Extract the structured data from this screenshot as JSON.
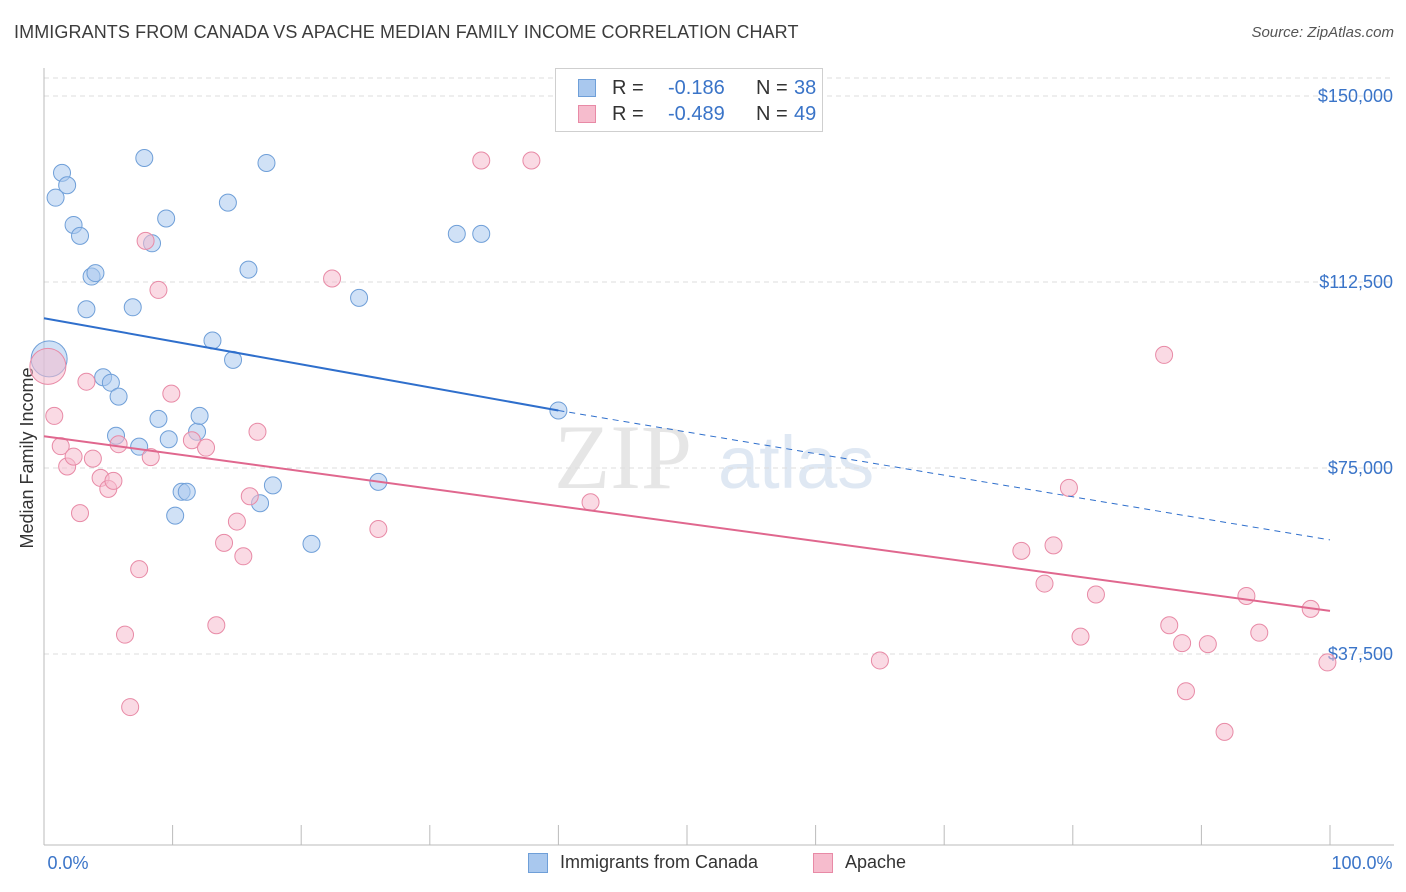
{
  "title": "IMMIGRANTS FROM CANADA VS APACHE MEDIAN FAMILY INCOME CORRELATION CHART",
  "source": "Source: ZipAtlas.com",
  "watermark": {
    "zip": "ZIP",
    "atlas": "atlas"
  },
  "legend_stats": [
    {
      "r_label": "R =",
      "r_value": "-0.186",
      "n_label": "N =",
      "n_value": "38"
    },
    {
      "r_label": "R =",
      "r_value": "-0.489",
      "n_label": "N =",
      "n_value": "49"
    }
  ],
  "bottom_legend": [
    "Immigrants from Canada",
    "Apache"
  ],
  "colors": {
    "canada_fill": "#a9c8ee",
    "canada_stroke": "#6f9fd8",
    "canada_line": "#2f6fcc",
    "apache_fill": "#f6bccd",
    "apache_stroke": "#e88aa6",
    "apache_line": "#e0678e",
    "tick_label": "#3a74c8",
    "grid": "#dddddd"
  },
  "chart_data": {
    "type": "scatter",
    "title": "IMMIGRANTS FROM CANADA VS APACHE MEDIAN FAMILY INCOME CORRELATION CHART",
    "xlabel": "",
    "ylabel": "Median Family Income",
    "xlim": [
      0,
      100
    ],
    "ylim": [
      10000,
      156000
    ],
    "x_tick_labels": [
      "0.0%",
      "100.0%"
    ],
    "y_ticks": [
      37500,
      75000,
      112500,
      150000
    ],
    "y_tick_labels": [
      "$37,500",
      "$75,000",
      "$112,500",
      "$150,000"
    ],
    "grid": true,
    "legend_position": "top-center",
    "series": [
      {
        "name": "Immigrants from Canada",
        "r": -0.186,
        "n": 38,
        "trend": {
          "x0": 0,
          "y0": 105200,
          "x1": 40.0,
          "y1": 86600,
          "x_dash_end": 100,
          "y_dash_end": 60500
        },
        "points": [
          {
            "x": 0.4,
            "y": 97000,
            "big": true
          },
          {
            "x": 0.9,
            "y": 129500
          },
          {
            "x": 1.4,
            "y": 134500
          },
          {
            "x": 1.8,
            "y": 132000
          },
          {
            "x": 2.3,
            "y": 124000
          },
          {
            "x": 2.8,
            "y": 121800
          },
          {
            "x": 3.3,
            "y": 107000
          },
          {
            "x": 3.7,
            "y": 113600
          },
          {
            "x": 4.0,
            "y": 114300
          },
          {
            "x": 4.6,
            "y": 93300
          },
          {
            "x": 5.2,
            "y": 92200
          },
          {
            "x": 5.8,
            "y": 89400
          },
          {
            "x": 5.6,
            "y": 81500
          },
          {
            "x": 6.9,
            "y": 107400
          },
          {
            "x": 7.4,
            "y": 79300
          },
          {
            "x": 7.8,
            "y": 137500
          },
          {
            "x": 8.4,
            "y": 120300
          },
          {
            "x": 8.9,
            "y": 84900
          },
          {
            "x": 9.5,
            "y": 125300
          },
          {
            "x": 9.7,
            "y": 80800
          },
          {
            "x": 10.2,
            "y": 65400
          },
          {
            "x": 10.7,
            "y": 70200
          },
          {
            "x": 11.1,
            "y": 70200
          },
          {
            "x": 11.9,
            "y": 82300
          },
          {
            "x": 12.1,
            "y": 85500
          },
          {
            "x": 13.1,
            "y": 100700
          },
          {
            "x": 14.3,
            "y": 128500
          },
          {
            "x": 14.7,
            "y": 96800
          },
          {
            "x": 15.9,
            "y": 115000
          },
          {
            "x": 16.8,
            "y": 67900
          },
          {
            "x": 17.3,
            "y": 136500
          },
          {
            "x": 17.8,
            "y": 71500
          },
          {
            "x": 20.8,
            "y": 59700
          },
          {
            "x": 24.5,
            "y": 109300
          },
          {
            "x": 26.0,
            "y": 72200
          },
          {
            "x": 32.1,
            "y": 122200
          },
          {
            "x": 34.0,
            "y": 122200
          },
          {
            "x": 40.0,
            "y": 86600
          }
        ]
      },
      {
        "name": "Apache",
        "r": -0.489,
        "n": 49,
        "trend": {
          "x0": 0,
          "y0": 81400,
          "x1": 100,
          "y1": 46200
        },
        "points": [
          {
            "x": 0.3,
            "y": 95500,
            "big": true
          },
          {
            "x": 0.8,
            "y": 85500
          },
          {
            "x": 1.3,
            "y": 79400
          },
          {
            "x": 1.8,
            "y": 75300
          },
          {
            "x": 2.3,
            "y": 77300
          },
          {
            "x": 2.8,
            "y": 65900
          },
          {
            "x": 3.3,
            "y": 92400
          },
          {
            "x": 3.8,
            "y": 76900
          },
          {
            "x": 4.4,
            "y": 73000
          },
          {
            "x": 5.0,
            "y": 70800
          },
          {
            "x": 5.4,
            "y": 72400
          },
          {
            "x": 5.8,
            "y": 79800
          },
          {
            "x": 6.3,
            "y": 41400
          },
          {
            "x": 6.7,
            "y": 26800
          },
          {
            "x": 7.4,
            "y": 54600
          },
          {
            "x": 7.9,
            "y": 120800
          },
          {
            "x": 8.3,
            "y": 77200
          },
          {
            "x": 8.9,
            "y": 110900
          },
          {
            "x": 9.9,
            "y": 90000
          },
          {
            "x": 11.5,
            "y": 80600
          },
          {
            "x": 12.6,
            "y": 79100
          },
          {
            "x": 13.4,
            "y": 43300
          },
          {
            "x": 14.0,
            "y": 59900
          },
          {
            "x": 15.0,
            "y": 64200
          },
          {
            "x": 15.5,
            "y": 57200
          },
          {
            "x": 16.0,
            "y": 69300
          },
          {
            "x": 16.6,
            "y": 82300
          },
          {
            "x": 22.4,
            "y": 113200
          },
          {
            "x": 26.0,
            "y": 62700
          },
          {
            "x": 34.0,
            "y": 137000
          },
          {
            "x": 37.9,
            "y": 137000
          },
          {
            "x": 42.5,
            "y": 68100
          },
          {
            "x": 65.0,
            "y": 36200
          },
          {
            "x": 76.0,
            "y": 58300
          },
          {
            "x": 77.8,
            "y": 51700
          },
          {
            "x": 78.5,
            "y": 59400
          },
          {
            "x": 79.7,
            "y": 71000
          },
          {
            "x": 80.6,
            "y": 41000
          },
          {
            "x": 81.8,
            "y": 49500
          },
          {
            "x": 87.1,
            "y": 97800
          },
          {
            "x": 87.5,
            "y": 43300
          },
          {
            "x": 88.5,
            "y": 39700
          },
          {
            "x": 88.8,
            "y": 30000
          },
          {
            "x": 90.5,
            "y": 39500
          },
          {
            "x": 91.8,
            "y": 21800
          },
          {
            "x": 93.5,
            "y": 49200
          },
          {
            "x": 94.5,
            "y": 41800
          },
          {
            "x": 98.5,
            "y": 46600
          },
          {
            "x": 99.8,
            "y": 35800
          }
        ]
      }
    ]
  }
}
